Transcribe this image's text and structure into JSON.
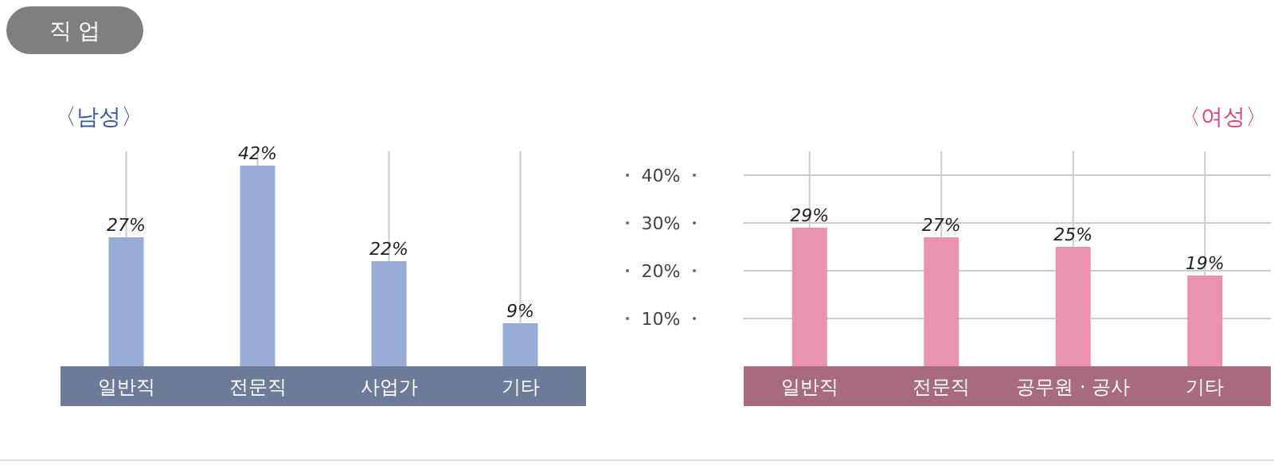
{
  "chart_data": [
    {
      "type": "bar",
      "title": "직 업",
      "subtitle": "〈남성〉",
      "categories": [
        "일반직",
        "전문직",
        "사업가",
        "기타"
      ],
      "series": [
        {
          "color": "#97abd5",
          "values": [
            27,
            42,
            22,
            9
          ],
          "value_labels": [
            "27%",
            "42%",
            "22%",
            "9%"
          ]
        }
      ],
      "grid": true
    },
    {
      "type": "bar",
      "subtitle": "〈여성〉",
      "categories": [
        "일반직",
        "전문직",
        "공무원 · 공사",
        "기타"
      ],
      "series": [
        {
          "color": "#e993b0",
          "values": [
            29,
            27,
            25,
            19
          ],
          "value_labels": [
            "29%",
            "27%",
            "25%",
            "19%"
          ]
        }
      ],
      "ylim": [
        0,
        45
      ],
      "yticks": [
        {
          "value": 10,
          "label": "10%"
        },
        {
          "value": 20,
          "label": "20%"
        },
        {
          "value": 30,
          "label": "30%"
        },
        {
          "value": 40,
          "label": "40%"
        }
      ],
      "grid": true
    }
  ]
}
